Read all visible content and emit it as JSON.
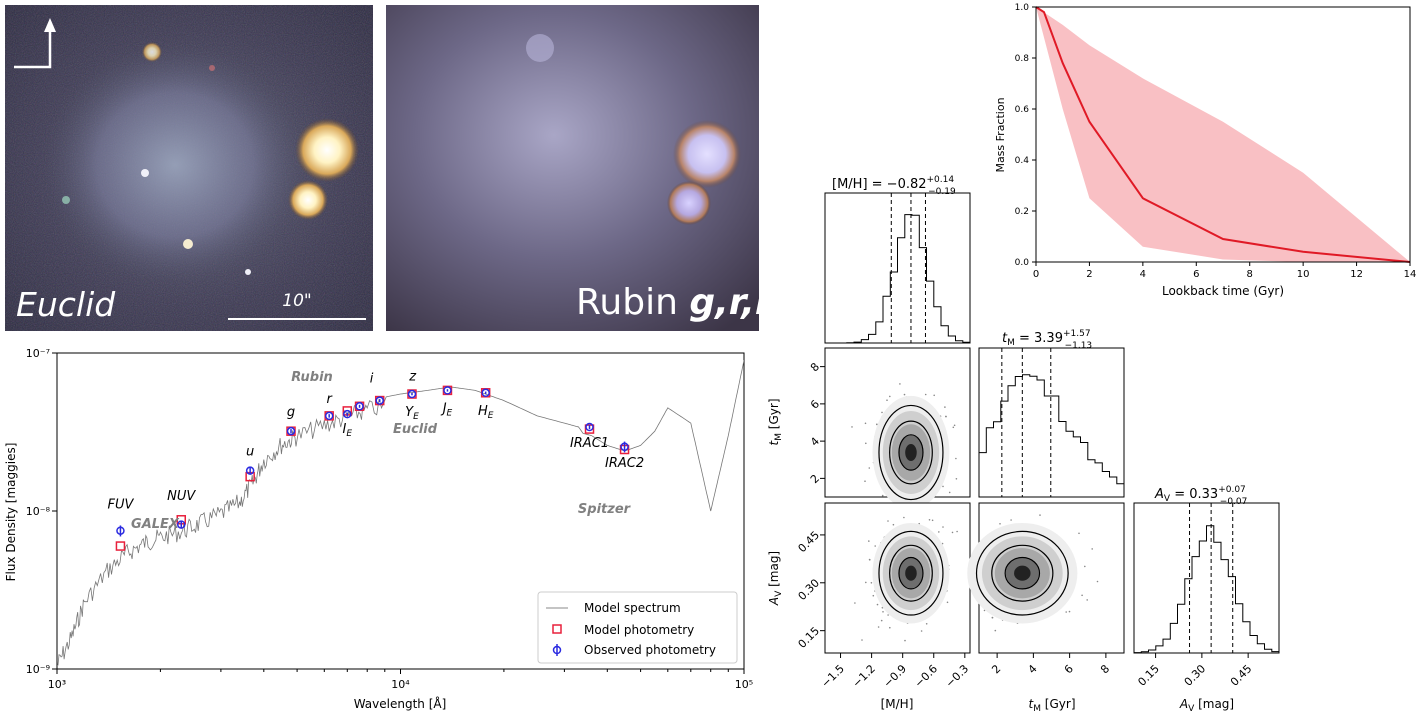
{
  "images": {
    "euclid": {
      "label": "Euclid",
      "scalebar_label": "10\""
    },
    "rubin": {
      "label": "Rubin ",
      "label_bands": "g,r,i"
    }
  },
  "chart_data": [
    {
      "id": "sfh",
      "type": "line",
      "title": "",
      "xlabel": "Lookback time (Gyr)",
      "ylabel": "Mass Fraction",
      "xlim": [
        0,
        14
      ],
      "ylim": [
        0,
        1
      ],
      "xticks": [
        0,
        2,
        4,
        6,
        8,
        10,
        12,
        14
      ],
      "yticks": [
        0.0,
        0.2,
        0.4,
        0.6,
        0.8,
        1.0
      ],
      "ytick_labels": [
        "0.0",
        "0.2",
        "0.4",
        "0.6",
        "0.8",
        "1.0"
      ],
      "series": [
        {
          "name": "median",
          "x": [
            0,
            0.3,
            1,
            2,
            4,
            7,
            10,
            14
          ],
          "y": [
            1.0,
            0.98,
            0.78,
            0.55,
            0.25,
            0.09,
            0.04,
            0.0
          ]
        },
        {
          "name": "upper",
          "x": [
            0,
            1,
            2,
            4,
            7,
            10,
            14
          ],
          "y": [
            1.0,
            0.93,
            0.85,
            0.72,
            0.55,
            0.35,
            0.0
          ]
        },
        {
          "name": "lower",
          "x": [
            0,
            1,
            2,
            4,
            7,
            10,
            14
          ],
          "y": [
            1.0,
            0.6,
            0.25,
            0.06,
            0.01,
            0.0,
            0.0
          ]
        }
      ]
    },
    {
      "id": "sed",
      "type": "scatter",
      "xlabel": "Wavelength [Å]",
      "ylabel": "Flux Density [maggies]",
      "xscale": "log",
      "yscale": "log",
      "xlim": [
        1000,
        100000
      ],
      "ylim": [
        1e-09,
        1e-07
      ],
      "xticks": [
        1000,
        10000,
        100000
      ],
      "xtick_labels": [
        "10³",
        "10⁴",
        "10⁵"
      ],
      "yticks": [
        1e-09,
        1e-08,
        1e-07
      ],
      "ytick_labels": [
        "10⁻⁹",
        "10⁻⁸",
        "10⁻⁷"
      ],
      "legend": {
        "position": "bottom-right",
        "entries": [
          "Model spectrum",
          "Model photometry",
          "Observed photometry"
        ]
      },
      "telescope_labels": [
        "Rubin",
        "Euclid",
        "GALEX",
        "Spitzer"
      ],
      "bands": [
        {
          "name": "FUV",
          "wavelength": 1530,
          "model": 6e-09,
          "observed": 7.5e-09,
          "err": 6e-10
        },
        {
          "name": "NUV",
          "wavelength": 2300,
          "model": 8.8e-09,
          "observed": 8.2e-09,
          "err": 4e-10
        },
        {
          "name": "u",
          "wavelength": 3650,
          "model": 1.65e-08,
          "observed": 1.8e-08,
          "err": 1e-09
        },
        {
          "name": "g",
          "wavelength": 4800,
          "model": 3.2e-08,
          "observed": 3.2e-08,
          "err": 1e-09
        },
        {
          "name": "r",
          "wavelength": 6200,
          "model": 4e-08,
          "observed": 4e-08,
          "err": 1e-09
        },
        {
          "name": "i",
          "wavelength": 7600,
          "model": 4.6e-08,
          "observed": 4.6e-08,
          "err": 1e-09
        },
        {
          "name": "z",
          "wavelength": 8700,
          "model": 5e-08,
          "observed": 5e-08,
          "err": 1e-09
        },
        {
          "name": "I_E",
          "wavelength": 7000,
          "model": 4.3e-08,
          "observed": 4.1e-08,
          "err": 1e-09
        },
        {
          "name": "Y_E",
          "wavelength": 10800,
          "model": 5.5e-08,
          "observed": 5.5e-08,
          "err": 1e-09
        },
        {
          "name": "J_E",
          "wavelength": 13700,
          "model": 5.8e-08,
          "observed": 5.8e-08,
          "err": 1e-09
        },
        {
          "name": "H_E",
          "wavelength": 17700,
          "model": 5.6e-08,
          "observed": 5.6e-08,
          "err": 1e-09
        },
        {
          "name": "IRAC1",
          "wavelength": 35500,
          "model": 3.3e-08,
          "observed": 3.4e-08,
          "err": 1e-09
        },
        {
          "name": "IRAC2",
          "wavelength": 44900,
          "model": 2.45e-08,
          "observed": 2.55e-08,
          "err": 2e-09
        }
      ],
      "band_labels": {
        "FUV": "FUV",
        "NUV": "NUV",
        "u": "u",
        "g": "g",
        "r": "r",
        "i": "i",
        "z": "z",
        "I_E": "I",
        "Y_E": "Y",
        "J_E": "J",
        "H_E": "H",
        "IRAC1": "IRAC1",
        "IRAC2": "IRAC2"
      },
      "band_subscript": "E",
      "spectrum": {
        "wavelength": [
          1000,
          1100,
          1200,
          1400,
          1600,
          1800,
          2000,
          2300,
          2600,
          3000,
          3400,
          3700,
          4000,
          4500,
          5000,
          6000,
          7000,
          8000,
          10000,
          12000,
          14000,
          16500,
          20000,
          25000,
          30000,
          33000,
          34000,
          36000,
          40000,
          45000,
          50000,
          55000,
          60000,
          70000,
          80000,
          90000,
          100000
        ],
        "flux": [
          1.2e-09,
          1.8e-09,
          3e-09,
          4.8e-09,
          6.2e-09,
          7.2e-09,
          7.8e-09,
          8.5e-09,
          9.5e-09,
          1.1e-08,
          1.3e-08,
          1.7e-08,
          2.4e-08,
          3e-08,
          3.4e-08,
          4e-08,
          4.5e-08,
          5e-08,
          5.5e-08,
          5.8e-08,
          6.1e-08,
          5.8e-08,
          5e-08,
          4e-08,
          3.6e-08,
          3.4e-08,
          3.1e-08,
          3e-08,
          2.6e-08,
          2.4e-08,
          2.6e-08,
          3.2e-08,
          4.5e-08,
          3.6e-08,
          1e-08,
          3e-08,
          9e-08
        ]
      }
    },
    {
      "id": "corner",
      "type": "scatter",
      "titles": [
        "[M/H] = −0.82",
        "t",
        " = 3.39",
        "A",
        " = 0.33"
      ],
      "title_sub": {
        "tM": "M",
        "AV": "V"
      },
      "title_sup": [
        "+0.14",
        "+1.57",
        "+0.07"
      ],
      "title_inf": [
        "−0.19",
        "−1.13",
        "−0.07"
      ],
      "params": [
        {
          "name": "[M/H]",
          "median": -0.82,
          "lo": -1.01,
          "hi": -0.68,
          "range": [
            -1.65,
            -0.25
          ],
          "ticks": [
            -1.5,
            -1.2,
            -0.9,
            -0.6,
            -0.3
          ],
          "tick_labels": [
            "−1.5",
            "−1.2",
            "−0.9",
            "−0.6",
            "−0.3"
          ]
        },
        {
          "name": "tM",
          "median": 3.39,
          "lo": 2.26,
          "hi": 4.96,
          "range": [
            1,
            9
          ],
          "ticks": [
            2,
            4,
            6,
            8
          ],
          "tick_labels": [
            "2",
            "4",
            "6",
            "8"
          ]
        },
        {
          "name": "AV",
          "median": 0.33,
          "lo": 0.26,
          "hi": 0.4,
          "range": [
            0.08,
            0.55
          ],
          "ticks": [
            0.15,
            0.3,
            0.45
          ],
          "tick_labels": [
            "0.15",
            "0.30",
            "0.45"
          ]
        }
      ],
      "axis_labels": {
        "mh": "[M/H]",
        "tm_main": "t",
        "tm_sub": "M",
        "tm_unit": " [Gyr]",
        "av_main": "A",
        "av_sub": "V",
        "av_unit": " [mag]"
      }
    }
  ]
}
